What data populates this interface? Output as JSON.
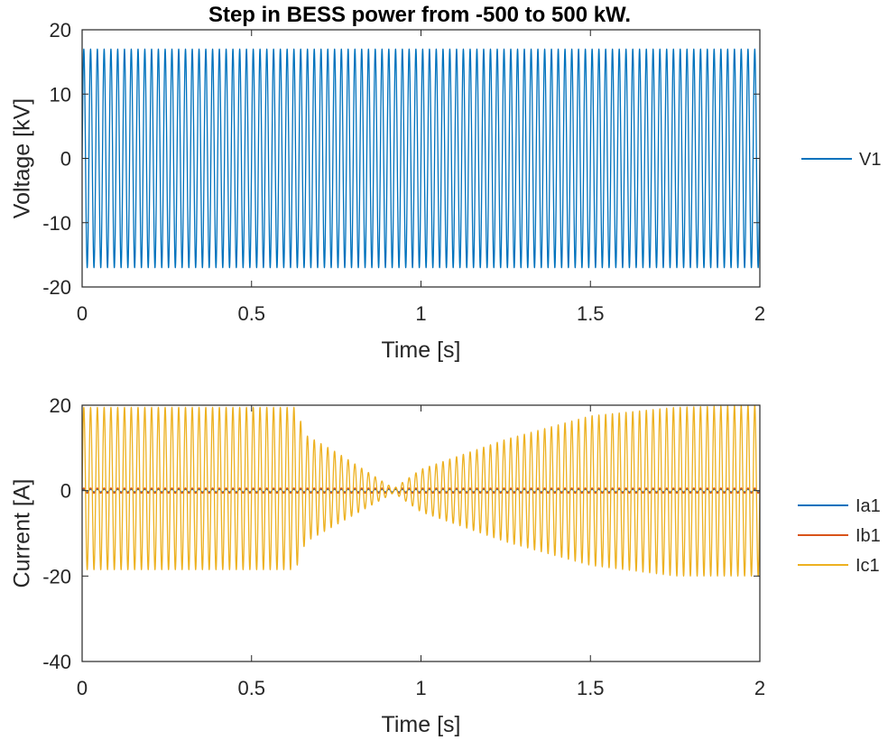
{
  "chart_data": [
    {
      "type": "line",
      "title": "Step in BESS power from -500 to 500 kW.",
      "xlabel": "Time [s]",
      "ylabel": "Voltage [kV]",
      "xlim": [
        0,
        2
      ],
      "ylim": [
        -20,
        20
      ],
      "xticks": [
        0,
        0.5,
        1,
        1.5,
        2
      ],
      "xtick_labels": [
        "0",
        "0.5",
        "1",
        "1.5",
        "2"
      ],
      "yticks": [
        -20,
        -10,
        0,
        10,
        20
      ],
      "ytick_labels": [
        "-20",
        "-10",
        "0",
        "10",
        "20"
      ],
      "grid": false,
      "legend_position": "outside-right",
      "series": [
        {
          "name": "V1",
          "color": "#0072BD",
          "waveform": "sinusoid",
          "frequency_hz": 50,
          "envelope": {
            "t": [
              0,
              2
            ],
            "pos": [
              17,
              17
            ],
            "neg": [
              -17,
              -17
            ]
          }
        }
      ]
    },
    {
      "type": "line",
      "title": "",
      "xlabel": "Time [s]",
      "ylabel": "Current [A]",
      "xlim": [
        0,
        2
      ],
      "ylim": [
        -40,
        20
      ],
      "xticks": [
        0,
        0.5,
        1,
        1.5,
        2
      ],
      "xtick_labels": [
        "0",
        "0.5",
        "1",
        "1.5",
        "2"
      ],
      "yticks": [
        -40,
        -20,
        0,
        20
      ],
      "ytick_labels": [
        "-40",
        "-20",
        "0",
        "20"
      ],
      "grid": false,
      "legend_position": "outside-right",
      "series": [
        {
          "name": "Ia1",
          "color": "#0072BD",
          "waveform": "sinusoid",
          "frequency_hz": 50,
          "envelope": {
            "t": [
              0,
              2
            ],
            "pos": [
              0.3,
              0.3
            ],
            "neg": [
              -0.3,
              -0.3
            ]
          }
        },
        {
          "name": "Ib1",
          "color": "#D95319",
          "waveform": "sinusoid",
          "frequency_hz": 50,
          "envelope": {
            "t": [
              0,
              2
            ],
            "pos": [
              0.6,
              0.6
            ],
            "neg": [
              -0.6,
              -0.6
            ]
          }
        },
        {
          "name": "Ic1",
          "color": "#EDB120",
          "waveform": "sinusoid",
          "frequency_hz": 50,
          "envelope": {
            "t": [
              0,
              0.63,
              0.66,
              0.75,
              0.92,
              1.0,
              1.25,
              1.5,
              1.75,
              2.0
            ],
            "pos": [
              19.5,
              19.5,
              13,
              9,
              0.5,
              5,
              12,
              17.5,
              19.5,
              20
            ],
            "neg": [
              -18.5,
              -18.5,
              -12,
              -8,
              -0.5,
              -5,
              -12,
              -17.5,
              -20,
              -20
            ]
          }
        }
      ]
    }
  ]
}
